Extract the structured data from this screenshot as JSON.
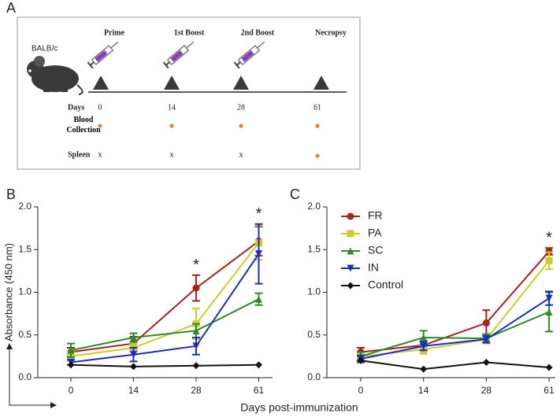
{
  "panel_a": {
    "label": "A",
    "animal": "BALB/c",
    "events": [
      "Prime",
      "1st Boost",
      "2nd Boost",
      "Necropsy"
    ],
    "days_label": "Days",
    "days": [
      "0",
      "14",
      "28",
      "61"
    ],
    "blood_label": "Blood Collection",
    "spleen_label": "Spleen",
    "spleen": [
      "x",
      "x",
      "x"
    ]
  },
  "xlabel": "Days post-immunization",
  "chart_data": [
    {
      "type": "line",
      "panel_label": "B",
      "ylabel": "Absorbance (450 nm)",
      "categories": [
        "0",
        "14",
        "28",
        "61"
      ],
      "ylim": [
        0,
        2
      ],
      "yticks": [
        {
          "value": 0,
          "label": "0.0"
        },
        0.5,
        {
          "value": 1,
          "label": "1.0"
        },
        1.5,
        {
          "value": 2,
          "label": "2.0"
        }
      ],
      "annotations": [
        {
          "text": "*",
          "x": "28"
        },
        {
          "text": "*",
          "x": "61"
        }
      ],
      "series": [
        {
          "name": "FR",
          "color": "#a8201a",
          "marker": "circle",
          "values": [
            0.3,
            0.4,
            1.05,
            1.6
          ],
          "errors": [
            0.05,
            0.08,
            0.15,
            0.17
          ]
        },
        {
          "name": "PA",
          "color": "#c9cc2a",
          "marker": "square",
          "values": [
            0.25,
            0.35,
            0.63,
            1.58
          ],
          "errors": [
            0.05,
            0.05,
            0.18,
            0.2
          ]
        },
        {
          "name": "SC",
          "color": "#2c8a2c",
          "marker": "triangle-up",
          "values": [
            0.32,
            0.47,
            0.55,
            0.92
          ],
          "errors": [
            0.08,
            0.05,
            0.08,
            0.07
          ]
        },
        {
          "name": "IN",
          "color": "#1a2bc0",
          "marker": "triangle-down",
          "values": [
            0.18,
            0.27,
            0.37,
            1.45
          ],
          "errors": [
            0.03,
            0.08,
            0.1,
            0.35
          ]
        },
        {
          "name": "Control",
          "color": "#111111",
          "marker": "diamond",
          "values": [
            0.15,
            0.13,
            0.14,
            0.15
          ]
        }
      ]
    },
    {
      "type": "line",
      "panel_label": "C",
      "legend": "upper left",
      "categories": [
        "0",
        "14",
        "28",
        "61"
      ],
      "ylim": [
        0,
        2
      ],
      "yticks": [
        {
          "value": 0,
          "label": "0.0"
        },
        0.5,
        {
          "value": 1,
          "label": "1.0"
        },
        1.5,
        {
          "value": 2,
          "label": "2.0"
        }
      ],
      "annotations": [
        {
          "text": "*",
          "x": "61"
        }
      ],
      "series": [
        {
          "name": "FR",
          "color": "#a8201a",
          "marker": "circle",
          "values": [
            0.3,
            0.38,
            0.64,
            1.48
          ],
          "errors": [
            0.05,
            0.05,
            0.15,
            0.04
          ]
        },
        {
          "name": "PA",
          "color": "#c9cc2a",
          "marker": "square",
          "values": [
            0.25,
            0.33,
            0.45,
            1.37
          ],
          "errors": [
            0.05,
            0.05,
            0.05,
            0.1
          ]
        },
        {
          "name": "SC",
          "color": "#2c8a2c",
          "marker": "triangle-up",
          "values": [
            0.25,
            0.47,
            0.46,
            0.77
          ],
          "errors": [
            0.05,
            0.08,
            0.05,
            0.23
          ]
        },
        {
          "name": "IN",
          "color": "#1a2bc0",
          "marker": "triangle-down",
          "values": [
            0.22,
            0.37,
            0.45,
            0.93
          ],
          "errors": [
            0.04,
            0.05,
            0.04,
            0.08
          ]
        },
        {
          "name": "Control",
          "color": "#111111",
          "marker": "diamond",
          "values": [
            0.2,
            0.1,
            0.18,
            0.12
          ]
        }
      ]
    }
  ]
}
